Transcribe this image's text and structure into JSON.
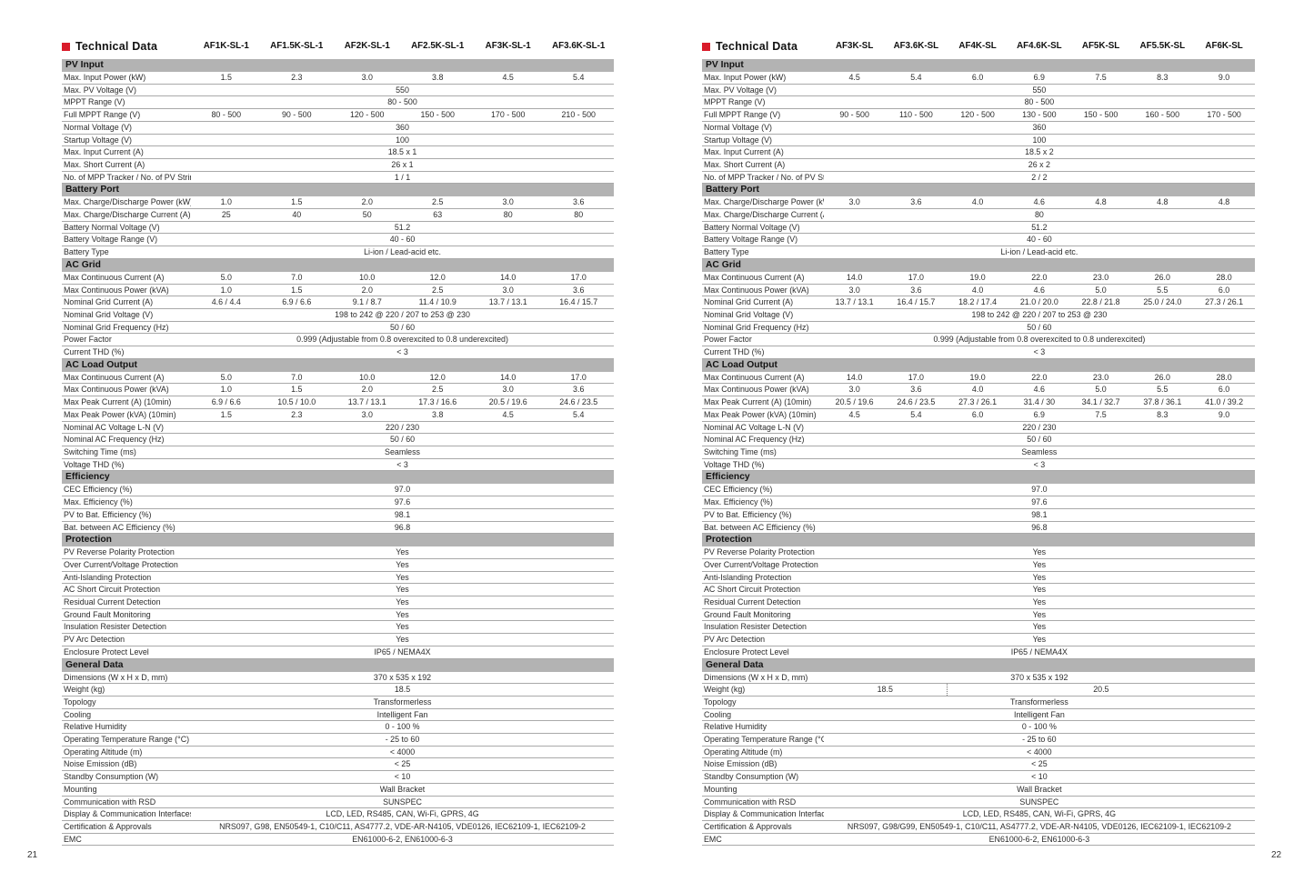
{
  "colors": {
    "accent_red": "#d91b2a",
    "section_gray": "#b3b3b3",
    "line_gray": "#a9a9a9"
  },
  "pages": [
    {
      "page_number": "21",
      "title": "Technical Data",
      "models": [
        "AF1K-SL-1",
        "AF1.5K-SL-1",
        "AF2K-SL-1",
        "AF2.5K-SL-1",
        "AF3K-SL-1",
        "AF3.6K-SL-1"
      ],
      "sections": [
        {
          "name": "PV Input",
          "rows": [
            {
              "label": "Max. Input Power (kW)",
              "values": [
                "1.5",
                "2.3",
                "3.0",
                "3.8",
                "4.5",
                "5.4"
              ]
            },
            {
              "label": "Max. PV Voltage (V)",
              "span": "550"
            },
            {
              "label": "MPPT Range (V)",
              "span": "80 - 500"
            },
            {
              "label": "Full MPPT Range (V)",
              "values": [
                "80 - 500",
                "90 - 500",
                "120 - 500",
                "150 - 500",
                "170 - 500",
                "210 - 500"
              ]
            },
            {
              "label": "Normal Voltage (V)",
              "span": "360"
            },
            {
              "label": "Startup Voltage (V)",
              "span": "100"
            },
            {
              "label": "Max. Input Current (A)",
              "span": "18.5 x 1"
            },
            {
              "label": "Max. Short Current (A)",
              "span": "26 x 1"
            },
            {
              "label": "No. of MPP Tracker / No. of PV String",
              "span": "1 / 1"
            }
          ]
        },
        {
          "name": "Battery Port",
          "rows": [
            {
              "label": "Max. Charge/Discharge Power (kW)",
              "values": [
                "1.0",
                "1.5",
                "2.0",
                "2.5",
                "3.0",
                "3.6"
              ]
            },
            {
              "label": "Max. Charge/Discharge Current (A)",
              "values": [
                "25",
                "40",
                "50",
                "63",
                "80",
                "80"
              ]
            },
            {
              "label": "Battery Normal Voltage (V)",
              "span": "51.2"
            },
            {
              "label": "Battery Voltage Range (V)",
              "span": "40 - 60"
            },
            {
              "label": "Battery Type",
              "span": "Li-ion / Lead-acid etc."
            }
          ]
        },
        {
          "name": "AC Grid",
          "rows": [
            {
              "label": "Max Continuous Current (A)",
              "values": [
                "5.0",
                "7.0",
                "10.0",
                "12.0",
                "14.0",
                "17.0"
              ]
            },
            {
              "label": "Max Continuous Power (kVA)",
              "values": [
                "1.0",
                "1.5",
                "2.0",
                "2.5",
                "3.0",
                "3.6"
              ]
            },
            {
              "label": "Nominal Grid Current (A)",
              "values": [
                "4.6 / 4.4",
                "6.9 / 6.6",
                "9.1 / 8.7",
                "11.4 / 10.9",
                "13.7 / 13.1",
                "16.4 / 15.7"
              ]
            },
            {
              "label": "Nominal Grid Voltage (V)",
              "span": "198 to 242 @ 220  /  207 to 253 @ 230"
            },
            {
              "label": "Nominal Grid Frequency (Hz)",
              "span": "50 / 60"
            },
            {
              "label": "Power Factor",
              "span": "0.999 (Adjustable from 0.8 overexcited to 0.8 underexcited)"
            },
            {
              "label": "Current THD (%)",
              "span": "< 3"
            }
          ]
        },
        {
          "name": "AC Load Output",
          "rows": [
            {
              "label": "Max Continuous Current (A)",
              "values": [
                "5.0",
                "7.0",
                "10.0",
                "12.0",
                "14.0",
                "17.0"
              ]
            },
            {
              "label": "Max Continuous Power (kVA)",
              "values": [
                "1.0",
                "1.5",
                "2.0",
                "2.5",
                "3.0",
                "3.6"
              ]
            },
            {
              "label": "Max Peak Current (A) (10min)",
              "values": [
                "6.9 / 6.6",
                "10.5 / 10.0",
                "13.7 / 13.1",
                "17.3 / 16.6",
                "20.5 / 19.6",
                "24.6 / 23.5"
              ]
            },
            {
              "label": "Max Peak Power (kVA) (10min)",
              "values": [
                "1.5",
                "2.3",
                "3.0",
                "3.8",
                "4.5",
                "5.4"
              ]
            },
            {
              "label": "Nominal AC Voltage L-N (V)",
              "span": "220 / 230"
            },
            {
              "label": "Nominal AC Frequency (Hz)",
              "span": "50 / 60"
            },
            {
              "label": "Switching Time (ms)",
              "span": "Seamless"
            },
            {
              "label": "Voltage THD (%)",
              "span": "< 3"
            }
          ]
        },
        {
          "name": "Efficiency",
          "rows": [
            {
              "label": "CEC Efficiency (%)",
              "span": "97.0"
            },
            {
              "label": "Max. Efficiency (%)",
              "span": "97.6"
            },
            {
              "label": "PV to Bat. Efficiency (%)",
              "span": "98.1"
            },
            {
              "label": "Bat. between  AC Efficiency (%)",
              "span": "96.8"
            }
          ]
        },
        {
          "name": "Protection",
          "rows": [
            {
              "label": "PV Reverse Polarity Protection",
              "span": "Yes"
            },
            {
              "label": "Over Current/Voltage Protection",
              "span": "Yes"
            },
            {
              "label": "Anti-Islanding Protection",
              "span": "Yes"
            },
            {
              "label": "AC Short Circuit Protection",
              "span": "Yes"
            },
            {
              "label": "Residual Current Detection",
              "span": "Yes"
            },
            {
              "label": "Ground Fault Monitoring",
              "span": "Yes"
            },
            {
              "label": "Insulation Resister Detection",
              "span": "Yes"
            },
            {
              "label": "PV Arc Detection",
              "span": "Yes"
            },
            {
              "label": "Enclosure Protect Level",
              "span": "IP65 / NEMA4X"
            }
          ]
        },
        {
          "name": "General Data",
          "rows": [
            {
              "label": "Dimensions (W x H x D, mm)",
              "span": "370 x 535 x 192"
            },
            {
              "label": "Weight (kg)",
              "span": "18.5"
            },
            {
              "label": "Topology",
              "span": "Transformerless"
            },
            {
              "label": "Cooling",
              "span": "Intelligent Fan"
            },
            {
              "label": "Relative Humidity",
              "span": "0 - 100 %"
            },
            {
              "label": "Operating Temperature Range (°C)",
              "span": "- 25 to 60"
            },
            {
              "label": "Operating Altitude (m)",
              "span": "< 4000"
            },
            {
              "label": "Noise Emission (dB)",
              "span": "< 25"
            },
            {
              "label": "Standby Consumption (W)",
              "span": "< 10"
            },
            {
              "label": "Mounting",
              "span": "Wall Bracket"
            },
            {
              "label": "Communication with RSD",
              "span": "SUNSPEC"
            },
            {
              "label": "Display & Communication Interfaces",
              "span": "LCD, LED, RS485, CAN, Wi-Fi, GPRS, 4G"
            },
            {
              "label": "Certification & Approvals",
              "span": "NRS097, G98, EN50549-1, C10/C11, AS4777.2, VDE-AR-N4105, VDE0126, IEC62109-1, IEC62109-2"
            },
            {
              "label": "EMC",
              "span": "EN61000-6-2, EN61000-6-3"
            }
          ]
        }
      ]
    },
    {
      "page_number": "22",
      "title": "Technical Data",
      "models": [
        "AF3K-SL",
        "AF3.6K-SL",
        "AF4K-SL",
        "AF4.6K-SL",
        "AF5K-SL",
        "AF5.5K-SL",
        "AF6K-SL"
      ],
      "sections": [
        {
          "name": "PV Input",
          "rows": [
            {
              "label": "Max. Input Power (kW)",
              "values": [
                "4.5",
                "5.4",
                "6.0",
                "6.9",
                "7.5",
                "8.3",
                "9.0"
              ]
            },
            {
              "label": "Max. PV Voltage (V)",
              "span": "550"
            },
            {
              "label": "MPPT Range (V)",
              "span": "80 - 500"
            },
            {
              "label": "Full MPPT Range (V)",
              "values": [
                "90 - 500",
                "110 - 500",
                "120 - 500",
                "130 - 500",
                "150 - 500",
                "160 - 500",
                "170 - 500"
              ]
            },
            {
              "label": "Normal Voltage (V)",
              "span": "360"
            },
            {
              "label": "Startup Voltage (V)",
              "span": "100"
            },
            {
              "label": "Max. Input Current (A)",
              "span": "18.5 x 2"
            },
            {
              "label": "Max. Short Current (A)",
              "span": "26 x 2"
            },
            {
              "label": "No. of MPP Tracker / No. of PV String",
              "span": "2 / 2"
            }
          ]
        },
        {
          "name": "Battery Port",
          "rows": [
            {
              "label": "Max. Charge/Discharge Power (kW)",
              "values": [
                "3.0",
                "3.6",
                "4.0",
                "4.6",
                "4.8",
                "4.8",
                "4.8"
              ]
            },
            {
              "label": "Max. Charge/Discharge Current (A)",
              "span": "80"
            },
            {
              "label": "Battery Normal Voltage (V)",
              "span": "51.2"
            },
            {
              "label": "Battery Voltage Range (V)",
              "span": "40 - 60"
            },
            {
              "label": "Battery Type",
              "span": "Li-ion / Lead-acid etc."
            }
          ]
        },
        {
          "name": "AC Grid",
          "rows": [
            {
              "label": "Max Continuous Current (A)",
              "values": [
                "14.0",
                "17.0",
                "19.0",
                "22.0",
                "23.0",
                "26.0",
                "28.0"
              ]
            },
            {
              "label": "Max Continuous Power (kVA)",
              "values": [
                "3.0",
                "3.6",
                "4.0",
                "4.6",
                "5.0",
                "5.5",
                "6.0"
              ]
            },
            {
              "label": "Nominal Grid Current (A)",
              "values": [
                "13.7 / 13.1",
                "16.4 / 15.7",
                "18.2 / 17.4",
                "21.0 / 20.0",
                "22.8 / 21.8",
                "25.0 / 24.0",
                "27.3 / 26.1"
              ]
            },
            {
              "label": "Nominal Grid Voltage (V)",
              "span": "198 to 242 @ 220  /  207 to 253 @ 230"
            },
            {
              "label": "Nominal Grid Frequency (Hz)",
              "span": "50 / 60"
            },
            {
              "label": "Power Factor",
              "span": "0.999 (Adjustable from 0.8 overexcited to 0.8 underexcited)"
            },
            {
              "label": "Current THD (%)",
              "span": "< 3"
            }
          ]
        },
        {
          "name": "AC Load Output",
          "rows": [
            {
              "label": "Max Continuous Current (A)",
              "values": [
                "14.0",
                "17.0",
                "19.0",
                "22.0",
                "23.0",
                "26.0",
                "28.0"
              ]
            },
            {
              "label": "Max Continuous Power (kVA)",
              "values": [
                "3.0",
                "3.6",
                "4.0",
                "4.6",
                "5.0",
                "5.5",
                "6.0"
              ]
            },
            {
              "label": "Max Peak Current (A) (10min)",
              "values": [
                "20.5 / 19.6",
                "24.6 / 23.5",
                "27.3 / 26.1",
                "31.4 / 30",
                "34.1 / 32.7",
                "37.8 / 36.1",
                "41.0 / 39.2"
              ]
            },
            {
              "label": "Max Peak Power (kVA) (10min)",
              "values": [
                "4.5",
                "5.4",
                "6.0",
                "6.9",
                "7.5",
                "8.3",
                "9.0"
              ]
            },
            {
              "label": "Nominal AC Voltage L-N (V)",
              "span": "220 / 230"
            },
            {
              "label": "Nominal AC Frequency (Hz)",
              "span": "50 / 60"
            },
            {
              "label": "Switching Time (ms)",
              "span": "Seamless"
            },
            {
              "label": "Voltage THD (%)",
              "span": "< 3"
            }
          ]
        },
        {
          "name": "Efficiency",
          "rows": [
            {
              "label": "CEC Efficiency (%)",
              "span": "97.0"
            },
            {
              "label": "Max. Efficiency (%)",
              "span": "97.6"
            },
            {
              "label": "PV to Bat. Efficiency (%)",
              "span": "98.1"
            },
            {
              "label": "Bat. between  AC Efficiency (%)",
              "span": "96.8"
            }
          ]
        },
        {
          "name": "Protection",
          "rows": [
            {
              "label": "PV Reverse Polarity Protection",
              "span": "Yes"
            },
            {
              "label": "Over Current/Voltage Protection",
              "span": "Yes"
            },
            {
              "label": "Anti-Islanding Protection",
              "span": "Yes"
            },
            {
              "label": "AC Short Circuit Protection",
              "span": "Yes"
            },
            {
              "label": "Residual Current Detection",
              "span": "Yes"
            },
            {
              "label": "Ground Fault Monitoring",
              "span": "Yes"
            },
            {
              "label": "Insulation Resister Detection",
              "span": "Yes"
            },
            {
              "label": "PV Arc Detection",
              "span": "Yes"
            },
            {
              "label": "Enclosure Protect Level",
              "span": "IP65 / NEMA4X"
            }
          ]
        },
        {
          "name": "General Data",
          "rows": [
            {
              "label": "Dimensions (W x H x D, mm)",
              "span": "370 x 535 x 192"
            },
            {
              "label": "Weight (kg)",
              "split": {
                "left": "18.5",
                "left_cols": 2,
                "right": "20.5",
                "right_cols": 5
              }
            },
            {
              "label": "Topology",
              "span": "Transformerless"
            },
            {
              "label": "Cooling",
              "span": "Intelligent Fan"
            },
            {
              "label": "Relative Humidity",
              "span": "0 - 100 %"
            },
            {
              "label": "Operating Temperature Range (°C)",
              "span": "- 25 to 60"
            },
            {
              "label": "Operating Altitude (m)",
              "span": "< 4000"
            },
            {
              "label": "Noise Emission (dB)",
              "span": "< 25"
            },
            {
              "label": "Standby Consumption (W)",
              "span": "< 10"
            },
            {
              "label": "Mounting",
              "span": "Wall Bracket"
            },
            {
              "label": "Communication with RSD",
              "span": "SUNSPEC"
            },
            {
              "label": "Display & Communication Interfaces",
              "span": "LCD, LED, RS485, CAN, Wi-Fi, GPRS, 4G"
            },
            {
              "label": "Certification & Approvals",
              "span": "NRS097, G98/G99, EN50549-1, C10/C11, AS4777.2, VDE-AR-N4105, VDE0126, IEC62109-1, IEC62109-2"
            },
            {
              "label": "EMC",
              "span": "EN61000-6-2, EN61000-6-3"
            }
          ]
        }
      ]
    }
  ]
}
